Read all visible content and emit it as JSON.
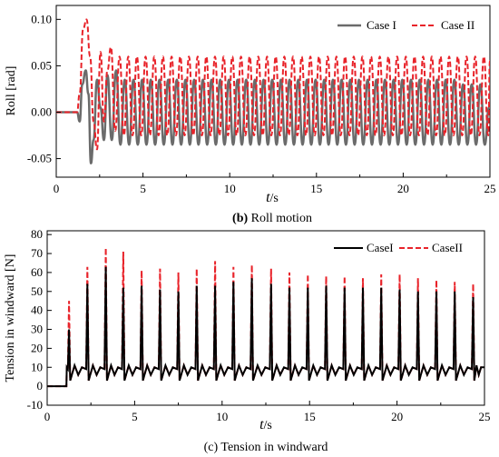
{
  "chart_data": [
    {
      "type": "line",
      "caption_letter": "(b)",
      "caption_text": "Roll motion",
      "xlabel_var": "t",
      "xlabel_unit": "/s",
      "ylabel": "Roll [rad]",
      "xlim": [
        0,
        25
      ],
      "ylim": [
        -0.07,
        0.115
      ],
      "xticks": [
        0,
        5,
        10,
        15,
        20,
        25
      ],
      "yticks": [
        -0.05,
        0.0,
        0.05,
        0.1
      ],
      "ytick_labels": [
        "-0.05",
        "0.00",
        "0.05",
        "0.10"
      ],
      "grid": false,
      "legend_position": "top-right",
      "series": [
        {
          "name": "Case I",
          "color": "#6b6b6b",
          "style": "solid",
          "x": [
            0,
            1.2,
            1.35,
            1.5,
            1.7,
            1.85,
            2.0,
            2.15,
            2.35,
            2.55,
            2.75,
            2.95,
            3.2,
            3.45,
            3.7,
            3.95,
            4.2,
            4.45,
            4.7,
            4.95,
            5.2,
            5.45,
            5.7,
            5.95,
            6.2,
            6.45,
            6.7,
            6.95,
            7.2,
            7.45,
            7.7,
            7.95,
            8.2,
            8.45,
            8.7,
            8.95,
            9.2,
            9.45,
            9.7,
            9.95,
            10.2,
            10.45,
            10.7,
            10.95,
            11.2,
            11.45,
            11.7,
            11.95,
            12.2,
            12.45,
            12.7,
            12.95,
            13.2,
            13.45,
            13.7,
            13.95,
            14.2,
            14.45,
            14.7,
            14.95,
            15.2,
            15.45,
            15.7,
            15.95,
            16.2,
            16.45,
            16.7,
            16.95,
            17.2,
            17.45,
            17.7,
            17.95,
            18.2,
            18.45,
            18.7,
            18.95,
            19.2,
            19.45,
            19.7,
            19.95,
            20.2,
            20.45,
            20.7,
            20.95,
            21.2,
            21.45,
            21.7,
            21.95,
            22.2,
            22.45,
            22.7,
            22.95,
            23.2,
            23.45,
            23.7,
            23.95,
            24.2,
            24.45,
            24.7,
            24.95
          ],
          "y": [
            0,
            0,
            -0.01,
            0.03,
            0.045,
            0.02,
            -0.055,
            -0.03,
            0.035,
            0.005,
            -0.03,
            0.04,
            -0.03,
            0.045,
            -0.035,
            0.035,
            -0.035,
            0.035,
            -0.035,
            0.035,
            -0.035,
            0.035,
            -0.035,
            0.035,
            -0.035,
            0.035,
            -0.035,
            0.035,
            -0.035,
            0.035,
            -0.035,
            0.035,
            -0.035,
            0.035,
            -0.035,
            0.035,
            -0.035,
            0.035,
            -0.035,
            0.035,
            -0.035,
            0.035,
            -0.035,
            0.035,
            -0.035,
            0.035,
            -0.035,
            0.035,
            -0.035,
            0.035,
            -0.035,
            0.035,
            -0.035,
            0.035,
            -0.035,
            0.035,
            -0.035,
            0.035,
            -0.035,
            0.035,
            -0.035,
            0.035,
            -0.035,
            0.035,
            -0.035,
            0.035,
            -0.035,
            0.035,
            -0.035,
            0.035,
            -0.035,
            0.035,
            -0.035,
            0.035,
            -0.035,
            0.035,
            -0.035,
            0.035,
            -0.035,
            0.035,
            -0.035,
            0.035,
            -0.035,
            0.035,
            -0.035,
            0.035,
            -0.035,
            0.035,
            -0.035,
            0.035,
            -0.035,
            0.035,
            -0.035,
            0.03,
            -0.035,
            0.03,
            -0.035,
            0.03,
            -0.035,
            0.005
          ]
        },
        {
          "name": "Case II",
          "color": "#e8232a",
          "style": "dashed",
          "x": [
            0,
            1.2,
            1.35,
            1.55,
            1.75,
            1.95,
            2.15,
            2.35,
            2.55,
            2.75,
            2.95,
            3.15,
            3.4,
            3.65,
            3.9,
            4.15,
            4.4,
            4.65,
            4.9,
            5.15,
            5.4,
            5.65,
            5.9,
            6.15,
            6.4,
            6.65,
            6.9,
            7.15,
            7.4,
            7.65,
            7.9,
            8.15,
            8.4,
            8.65,
            8.9,
            9.15,
            9.4,
            9.65,
            9.9,
            10.15,
            10.4,
            10.65,
            10.9,
            11.15,
            11.4,
            11.65,
            11.9,
            12.15,
            12.4,
            12.65,
            12.9,
            13.15,
            13.4,
            13.65,
            13.9,
            14.15,
            14.4,
            14.65,
            14.9,
            15.15,
            15.4,
            15.65,
            15.9,
            16.15,
            16.4,
            16.65,
            16.9,
            17.15,
            17.4,
            17.65,
            17.9,
            18.15,
            18.4,
            18.65,
            18.9,
            19.15,
            19.4,
            19.65,
            19.9,
            20.15,
            20.4,
            20.65,
            20.9,
            21.15,
            21.4,
            21.65,
            21.9,
            22.15,
            22.4,
            22.65,
            22.9,
            23.15,
            23.4,
            23.65,
            23.9,
            24.15,
            24.4,
            24.65,
            24.9,
            25.0
          ],
          "y": [
            0,
            0,
            0.02,
            0.09,
            0.1,
            0.06,
            -0.01,
            -0.04,
            0.065,
            -0.01,
            0.045,
            0.07,
            -0.02,
            0.06,
            -0.025,
            0.06,
            -0.025,
            0.06,
            -0.025,
            0.06,
            -0.025,
            0.06,
            -0.025,
            0.06,
            -0.025,
            0.06,
            -0.025,
            0.06,
            -0.025,
            0.06,
            -0.025,
            0.06,
            -0.025,
            0.06,
            -0.025,
            0.06,
            -0.025,
            0.06,
            -0.025,
            0.06,
            -0.025,
            0.06,
            -0.025,
            0.06,
            -0.025,
            0.06,
            -0.025,
            0.06,
            -0.025,
            0.06,
            -0.025,
            0.06,
            -0.025,
            0.06,
            -0.025,
            0.06,
            -0.025,
            0.06,
            -0.025,
            0.06,
            -0.025,
            0.06,
            -0.025,
            0.06,
            -0.025,
            0.06,
            -0.025,
            0.06,
            -0.025,
            0.06,
            -0.025,
            0.06,
            -0.025,
            0.06,
            -0.025,
            0.06,
            -0.025,
            0.06,
            -0.025,
            0.06,
            -0.025,
            0.06,
            -0.025,
            0.06,
            -0.025,
            0.06,
            -0.025,
            0.06,
            -0.025,
            0.06,
            -0.025,
            0.06,
            -0.025,
            0.06,
            -0.025,
            0.06,
            -0.025,
            0.06,
            -0.025,
            0.055
          ]
        }
      ]
    },
    {
      "type": "line",
      "caption_letter": "",
      "caption_text": "(c) Tension in windward",
      "xlabel_var": "t",
      "xlabel_unit": "/s",
      "ylabel": "Tension in windward [N]",
      "xlim": [
        0,
        25
      ],
      "ylim": [
        -10,
        82
      ],
      "xticks": [
        0,
        5,
        10,
        15,
        20,
        25
      ],
      "yticks": [
        -10,
        0,
        10,
        20,
        30,
        40,
        50,
        60,
        70,
        80
      ],
      "ytick_labels": [
        "-10",
        "0",
        "10",
        "20",
        "30",
        "40",
        "50",
        "60",
        "70",
        "80"
      ],
      "grid": false,
      "legend_position": "top-right",
      "peaks": {
        "t": [
          1.25,
          2.3,
          3.35,
          4.35,
          5.4,
          6.45,
          7.5,
          8.55,
          9.6,
          10.65,
          11.7,
          12.8,
          13.85,
          14.9,
          15.95,
          17.0,
          18.05,
          19.1,
          20.15,
          21.2,
          22.25,
          23.3,
          24.35
        ],
        "caseI": [
          30,
          54,
          63,
          52,
          53,
          51,
          50,
          53,
          53,
          55,
          57,
          54,
          52,
          52,
          53,
          52,
          52,
          52,
          51,
          50,
          50,
          50,
          47
        ],
        "caseII": [
          45,
          63,
          73,
          71,
          61,
          62,
          60,
          62,
          66,
          63,
          64,
          62,
          60,
          59,
          58,
          58,
          57,
          59,
          59,
          57,
          56,
          55,
          54
        ]
      },
      "baseline_before_t": 1.1,
      "baseline_value": 0,
      "mean_level": 10,
      "series": [
        {
          "name": "CaseI",
          "color": "#000000",
          "style": "solid"
        },
        {
          "name": "CaseII",
          "color": "#e8232a",
          "style": "dashed"
        }
      ]
    }
  ]
}
